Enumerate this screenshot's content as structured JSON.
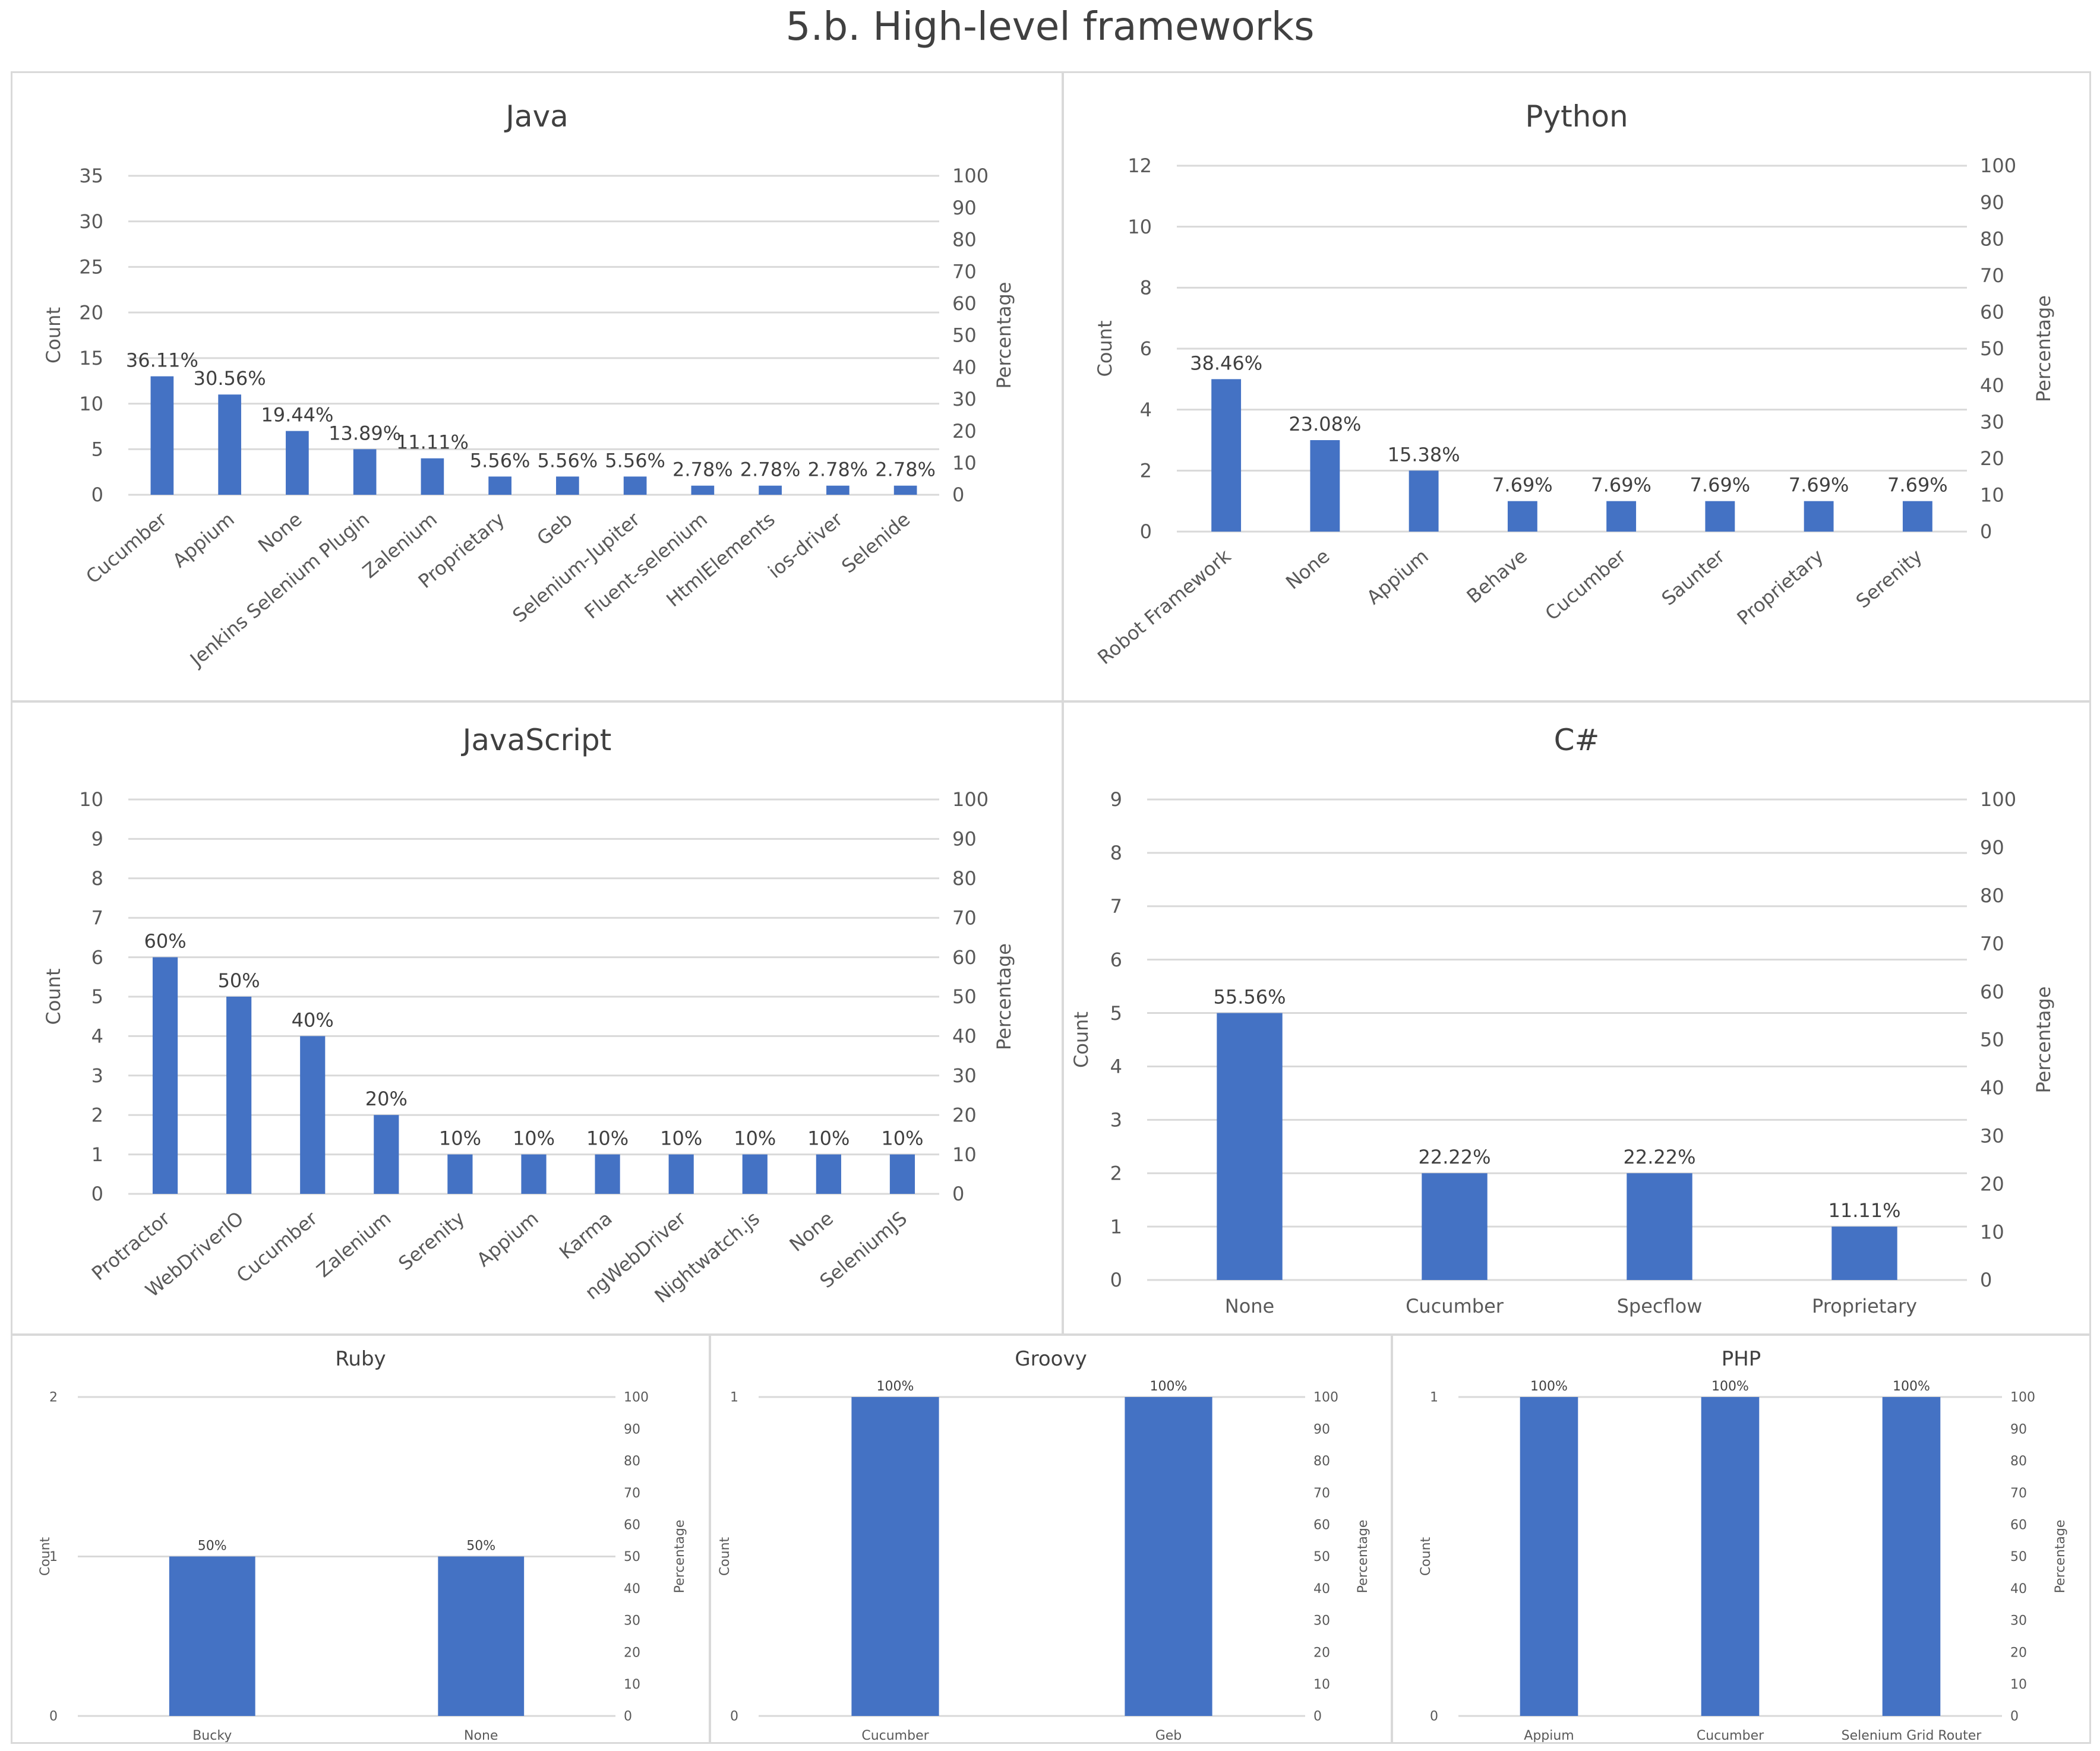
{
  "page_title": "5.b. High-level frameworks",
  "colors": {
    "bar": "#4472c4",
    "grid": "#d9d9d9",
    "text": "#595959"
  },
  "chart_data": [
    {
      "id": "java",
      "type": "bar",
      "title": "Java",
      "ylabel": "Count",
      "y2label": "Percentage",
      "ylim": [
        0,
        35
      ],
      "yticks": [
        0,
        5,
        10,
        15,
        20,
        25,
        30,
        35
      ],
      "y2lim": [
        0,
        100
      ],
      "y2ticks": [
        0,
        10,
        20,
        30,
        40,
        50,
        60,
        70,
        80,
        90,
        100
      ],
      "categories": [
        "Cucumber",
        "Appium",
        "None",
        "Jenkins Selenium Plugin",
        "Zalenium",
        "Proprietary",
        "Geb",
        "Selenium-Jupiter",
        "Fluent-selenium",
        "HtmlElements",
        "ios-driver",
        "Selenide"
      ],
      "values": [
        13,
        11,
        7,
        5,
        4,
        2,
        2,
        2,
        1,
        1,
        1,
        1
      ],
      "labels": [
        "36.11%",
        "30.56%",
        "19.44%",
        "13.89%",
        "11.11%",
        "5.56%",
        "5.56%",
        "5.56%",
        "2.78%",
        "2.78%",
        "2.78%",
        "2.78%"
      ]
    },
    {
      "id": "python",
      "type": "bar",
      "title": "Python",
      "ylabel": "Count",
      "y2label": "Percentage",
      "ylim": [
        0,
        12
      ],
      "yticks": [
        0,
        2,
        4,
        6,
        8,
        10,
        12
      ],
      "y2lim": [
        0,
        100
      ],
      "y2ticks": [
        0,
        10,
        20,
        30,
        40,
        50,
        60,
        70,
        80,
        90,
        100
      ],
      "categories": [
        "Robot Framework",
        "None",
        "Appium",
        "Behave",
        "Cucumber",
        "Saunter",
        "Proprietary",
        "Serenity"
      ],
      "values": [
        5,
        3,
        2,
        1,
        1,
        1,
        1,
        1
      ],
      "labels": [
        "38.46%",
        "23.08%",
        "15.38%",
        "7.69%",
        "7.69%",
        "7.69%",
        "7.69%",
        "7.69%"
      ]
    },
    {
      "id": "javascript",
      "type": "bar",
      "title": "JavaScript",
      "ylabel": "Count",
      "y2label": "Percentage",
      "ylim": [
        0,
        10
      ],
      "yticks": [
        0,
        1,
        2,
        3,
        4,
        5,
        6,
        7,
        8,
        9,
        10
      ],
      "y2lim": [
        0,
        100
      ],
      "y2ticks": [
        0,
        10,
        20,
        30,
        40,
        50,
        60,
        70,
        80,
        90,
        100
      ],
      "categories": [
        "Protractor",
        "WebDriverIO",
        "Cucumber",
        "Zalenium",
        "Serenity",
        "Appium",
        "Karma",
        "ngWebDriver",
        "Nightwatch.js",
        "None",
        "SeleniumJS"
      ],
      "values": [
        6,
        5,
        4,
        2,
        1,
        1,
        1,
        1,
        1,
        1,
        1
      ],
      "labels": [
        "60%",
        "50%",
        "40%",
        "20%",
        "10%",
        "10%",
        "10%",
        "10%",
        "10%",
        "10%",
        "10%"
      ]
    },
    {
      "id": "csharp",
      "type": "bar",
      "title": "C#",
      "ylabel": "Count",
      "y2label": "Percentage",
      "ylim": [
        0,
        9
      ],
      "yticks": [
        0,
        1,
        2,
        3,
        4,
        5,
        6,
        7,
        8,
        9
      ],
      "y2lim": [
        0,
        100
      ],
      "y2ticks": [
        0,
        10,
        20,
        30,
        40,
        50,
        60,
        70,
        80,
        90,
        100
      ],
      "categories": [
        "None",
        "Cucumber",
        "Specflow",
        "Proprietary"
      ],
      "values": [
        5,
        2,
        2,
        1
      ],
      "labels": [
        "55.56%",
        "22.22%",
        "22.22%",
        "11.11%"
      ]
    },
    {
      "id": "ruby",
      "type": "bar",
      "title": "Ruby",
      "ylabel": "Count",
      "y2label": "Percentage",
      "ylim": [
        0,
        2
      ],
      "yticks": [
        0,
        1,
        2
      ],
      "y2lim": [
        0,
        100
      ],
      "y2ticks": [
        0,
        10,
        20,
        30,
        40,
        50,
        60,
        70,
        80,
        90,
        100
      ],
      "categories": [
        "Bucky",
        "None"
      ],
      "values": [
        1,
        1
      ],
      "labels": [
        "50%",
        "50%"
      ]
    },
    {
      "id": "groovy",
      "type": "bar",
      "title": "Groovy",
      "ylabel": "Count",
      "y2label": "Percentage",
      "ylim": [
        0,
        1
      ],
      "yticks": [
        0,
        1
      ],
      "y2lim": [
        0,
        100
      ],
      "y2ticks": [
        0,
        10,
        20,
        30,
        40,
        50,
        60,
        70,
        80,
        90,
        100
      ],
      "categories": [
        "Cucumber",
        "Geb"
      ],
      "values": [
        1,
        1
      ],
      "labels": [
        "100%",
        "100%"
      ]
    },
    {
      "id": "php",
      "type": "bar",
      "title": "PHP",
      "ylabel": "Count",
      "y2label": "Percentage",
      "ylim": [
        0,
        1
      ],
      "yticks": [
        0,
        1
      ],
      "y2lim": [
        0,
        100
      ],
      "y2ticks": [
        0,
        10,
        20,
        30,
        40,
        50,
        60,
        70,
        80,
        90,
        100
      ],
      "categories": [
        "Appium",
        "Cucumber",
        "Selenium Grid Router"
      ],
      "values": [
        1,
        1,
        1
      ],
      "labels": [
        "100%",
        "100%",
        "100%"
      ]
    }
  ]
}
